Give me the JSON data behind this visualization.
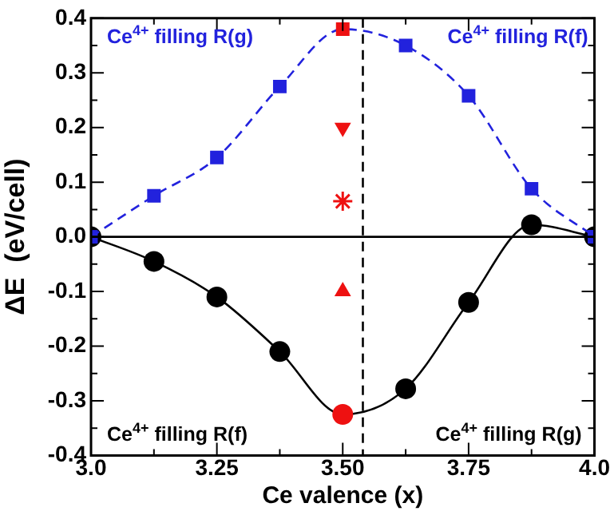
{
  "chart_data": {
    "type": "line",
    "xlabel": "Ce valence (x)",
    "ylabel": "ΔE  (eV/cell)",
    "xlim": [
      3,
      4
    ],
    "xticks": [
      {
        "value": 3,
        "label": "3.0"
      },
      3.25,
      {
        "value": 3.5,
        "label": "3.50"
      },
      3.75,
      {
        "value": 4,
        "label": "4.0"
      }
    ],
    "ylim": [
      -0.4,
      0.4
    ],
    "yticks": [
      -0.4,
      -0.3,
      -0.2,
      -0.1,
      {
        "value": 0,
        "label": "0.0"
      },
      0.1,
      0.2,
      0.3,
      0.4
    ],
    "grid": false,
    "legend": false,
    "series": [
      {
        "color": "#2222dd",
        "line_style": "dashed",
        "marker": "square",
        "x": [
          3,
          3.125,
          3.25,
          3.375,
          3.5,
          3.625,
          3.75,
          3.875,
          4
        ],
        "values": [
          0,
          0.075,
          0.145,
          0.275,
          0.38,
          0.35,
          0.258,
          0.088,
          0
        ],
        "colors": [
          "#2222dd",
          "#2222dd",
          "#2222dd",
          "#2222dd",
          "#ee1111",
          "#2222dd",
          "#2222dd",
          "#2222dd",
          "#2222dd"
        ]
      },
      {
        "color": "#000000",
        "line_style": "solid",
        "marker": "circle",
        "x": [
          3,
          3.125,
          3.25,
          3.375,
          3.5,
          3.625,
          3.75,
          3.875,
          4
        ],
        "values": [
          0,
          -0.045,
          -0.11,
          -0.21,
          -0.325,
          -0.278,
          -0.12,
          0.022,
          0
        ],
        "colors": [
          "#000000",
          "#000000",
          "#000000",
          "#000000",
          "#ee1111",
          "#000000",
          "#000000",
          "#000000",
          "#000000"
        ]
      },
      {
        "type": "scatter",
        "color": "#ee1111",
        "marker": "triangle_down",
        "x": [
          3.5
        ],
        "values": [
          0.2
        ]
      },
      {
        "type": "scatter",
        "color": "#ee1111",
        "marker": "cross",
        "x": [
          3.5
        ],
        "values": [
          0.065
        ]
      },
      {
        "type": "scatter",
        "color": "#ee1111",
        "marker": "triangle",
        "x": [
          3.5
        ],
        "values": [
          -0.1
        ]
      }
    ],
    "ref_lines": [
      {
        "axis": "x",
        "value": 3.54,
        "color": "#000000",
        "line_style": "dashed"
      },
      {
        "axis": "y",
        "value": 0,
        "color": "#000000",
        "line_style": "solid"
      }
    ],
    "annotations": [
      "Ce$^{4+}$ filling R(g)",
      "Ce$^{4+}$ filling R(f)",
      "Ce$^{4+}$ filling R(f)",
      "Ce$^{4+}$ filling R(g)"
    ]
  }
}
